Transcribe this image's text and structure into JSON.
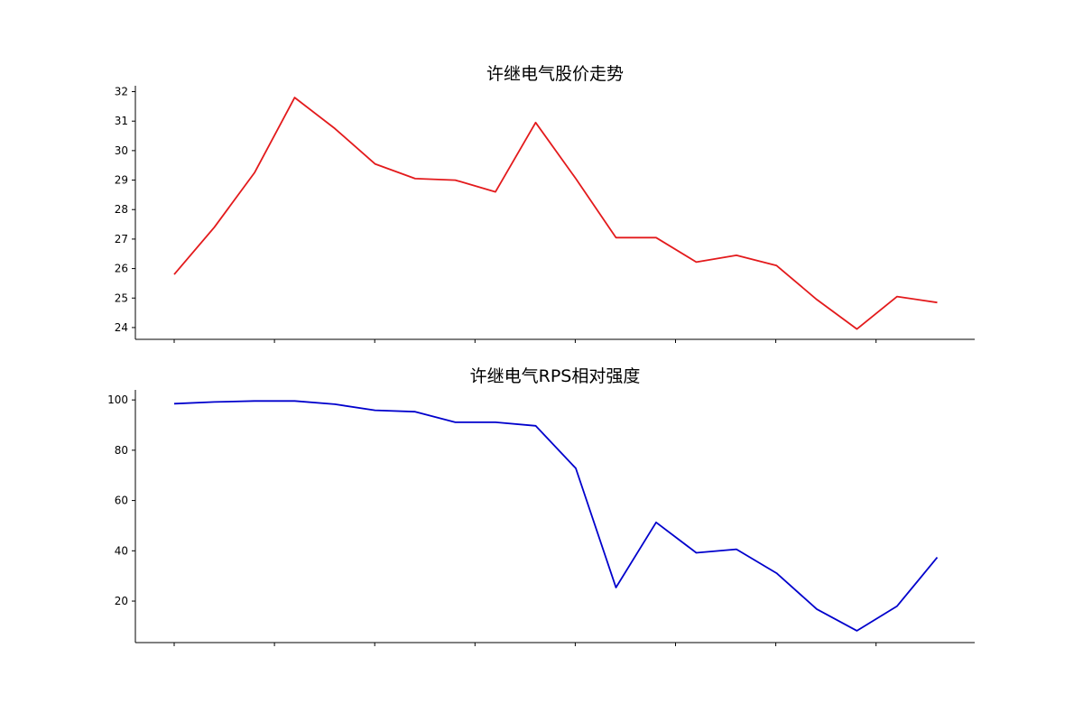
{
  "chart_data": [
    {
      "type": "line",
      "title": "许继电气股价走势",
      "xlabel": "",
      "ylabel": "",
      "ylim": [
        23.6,
        32.2
      ],
      "yticks": [
        24,
        25,
        26,
        27,
        28,
        29,
        30,
        31,
        32
      ],
      "x_tick_count": 8,
      "grid": false,
      "color": "#e31a1c",
      "series": [
        {
          "values": [
            25.8,
            27.4,
            29.25,
            31.8,
            30.75,
            29.55,
            29.05,
            29.0,
            28.6,
            30.95,
            29.05,
            27.05,
            27.05,
            26.22,
            26.45,
            26.1,
            24.95,
            23.95,
            25.05,
            24.85
          ]
        }
      ]
    },
    {
      "type": "line",
      "title": "许继电气RPS相对强度",
      "xlabel": "",
      "ylabel": "",
      "ylim": [
        3.5,
        104.0
      ],
      "yticks": [
        20,
        40,
        60,
        80,
        100
      ],
      "x_tick_count": 8,
      "grid": false,
      "color": "#0000cc",
      "series": [
        {
          "values": [
            98.5,
            99.2,
            99.6,
            99.6,
            98.3,
            95.9,
            95.3,
            91.1,
            91.1,
            89.7,
            72.8,
            25.4,
            51.3,
            39.2,
            40.6,
            31.1,
            16.8,
            8.2,
            18.0,
            37.4
          ]
        }
      ]
    }
  ]
}
